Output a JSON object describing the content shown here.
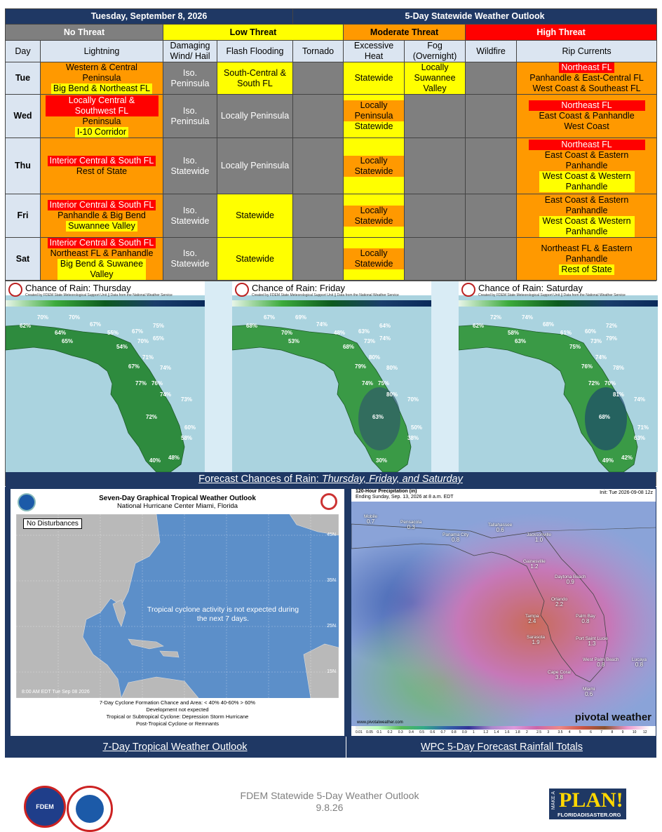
{
  "header": {
    "date": "Tuesday, September 8, 2026",
    "title": "5-Day Statewide Weather Outlook"
  },
  "legend": {
    "none": "No Threat",
    "low": "Low Threat",
    "moderate": "Moderate Threat",
    "high": "High Threat"
  },
  "colors": {
    "none": "#7f7f7f",
    "low": "#ffff00",
    "moderate": "#ff9900",
    "high": "#ff0000",
    "header_bg": "#1f3864"
  },
  "columns": [
    "Day",
    "Lightning",
    "Damaging Wind/ Hail",
    "Flash Flooding",
    "Tornado",
    "Excessive Heat",
    "Fog (Overnight)",
    "Wildfire",
    "Rip Currents"
  ],
  "days": [
    {
      "day": "Tue",
      "lightning": [
        "Western & Central",
        "Peninsula",
        "Big Bend & Northeast FL"
      ],
      "wind": "Iso. Peninsula",
      "flood": "South-Central & South FL",
      "heat": "Statewide",
      "fog": "Locally Suwannee Valley",
      "rip": [
        "Northeast FL",
        "Panhandle & East-Central FL",
        "West Coast & Southeast FL"
      ]
    },
    {
      "day": "Wed",
      "lightning": [
        "Locally Central & Southwest FL",
        "Peninsula",
        "I-10 Corridor"
      ],
      "wind": "Iso. Peninsula",
      "flood": "Locally Peninsula",
      "heat": [
        "Locally Peninsula",
        "Statewide"
      ],
      "rip": [
        "Northeast FL",
        "East Coast & Panhandle",
        "West Coast"
      ]
    },
    {
      "day": "Thu",
      "lightning": [
        "Interior Central & South FL",
        "Rest of State"
      ],
      "wind": "Iso. Statewide",
      "flood": "Locally Peninsula",
      "heat": "Locally Statewide",
      "rip": [
        "Northeast FL",
        "East Coast & Eastern Panhandle",
        "West Coast & Western Panhandle"
      ]
    },
    {
      "day": "Fri",
      "lightning": [
        "Interior Central & South FL",
        "Panhandle & Big Bend",
        "Suwannee Valley"
      ],
      "wind": "Iso. Statewide",
      "flood": "Statewide",
      "heat": "Locally Statewide",
      "rip": [
        "East Coast & Eastern Panhandle",
        "West Coast & Western Panhandle"
      ]
    },
    {
      "day": "Sat",
      "lightning": [
        "Interior Central & South FL",
        "Northeast FL & Panhandle",
        "Big Bend & Suwanee Valley"
      ],
      "wind": "Iso. Statewide",
      "flood": "Statewide",
      "heat": "Locally Statewide",
      "rip": [
        "Northeast FL & Eastern Panhandle",
        "Rest of State"
      ]
    }
  ],
  "rain_maps": {
    "titles": [
      "Chance of Rain: Thursday",
      "Chance of Rain: Friday",
      "Chance of Rain: Saturday"
    ],
    "credit": "Created by FDEM State Meteorological Support Unit || Data from the National Weather Service",
    "scale": [
      "20%",
      "30%",
      "40%",
      "50%",
      "60%",
      "70%",
      "80%",
      "90%"
    ],
    "values": [
      [
        "62%",
        "70%",
        "70%",
        "67%",
        "64%",
        "65%",
        "55%",
        "67%",
        "75%",
        "54%",
        "70%",
        "65%",
        "71%",
        "74%",
        "67%",
        "77%",
        "76%",
        "74%",
        "73%",
        "72%",
        "60%",
        "58%",
        "40%",
        "48%"
      ],
      [
        "68%",
        "67%",
        "69%",
        "74%",
        "70%",
        "53%",
        "48%",
        "63%",
        "64%",
        "68%",
        "73%",
        "74%",
        "80%",
        "80%",
        "79%",
        "74%",
        "75%",
        "80%",
        "70%",
        "63%",
        "50%",
        "38%",
        "30%"
      ],
      [
        "62%",
        "72%",
        "74%",
        "68%",
        "58%",
        "63%",
        "61%",
        "60%",
        "72%",
        "75%",
        "73%",
        "79%",
        "74%",
        "78%",
        "76%",
        "72%",
        "70%",
        "81%",
        "74%",
        "68%",
        "71%",
        "63%",
        "49%",
        "42%"
      ]
    ],
    "caption_lead": "Forecast Chances of Rain: ",
    "caption_days": "Thursday, Friday, and Saturday"
  },
  "tropical": {
    "title": "Seven-Day Graphical Tropical Weather Outlook",
    "subtitle": "National Hurricane Center  Miami, Florida",
    "no_dist": "No Disturbances",
    "message": "Tropical cyclone activity is not expected during the next 7 days.",
    "lats": [
      "45N",
      "35N",
      "25N",
      "15N"
    ],
    "lons": [
      "100W",
      "90W",
      "80W",
      "70W",
      "60W",
      "50W",
      "40W",
      "30W",
      "20W"
    ],
    "stamp": "8:00 AM EDT Tue Sep 08 2026",
    "legend_line1": "7-Day Cyclone Formation Chance and Area:  < 40%   40-60%   > 60%",
    "legend_line2": "Development not expected",
    "legend_line3": "Tropical or Subtropical Cyclone:  Depression   Storm   Hurricane",
    "legend_line4": "Post-Tropical Cyclone or Remnants",
    "caption": "7-Day Tropical Weather Outlook"
  },
  "wpc": {
    "title": "120-Hour Precipitation (in)",
    "ending": "Ending Sunday, Sep. 13, 2026 at 8 a.m. EDT",
    "init": "Init: Tue 2026-09-08 12z",
    "cities": [
      [
        "Mobile",
        "0.7"
      ],
      [
        "Pensacola",
        "0.3"
      ],
      [
        "Panama City",
        "0.8"
      ],
      [
        "Tallahassee",
        "0.6"
      ],
      [
        "Jacksonville",
        "1.0"
      ],
      [
        "Gainesville",
        "1.2"
      ],
      [
        "Daytona Beach",
        "0.9"
      ],
      [
        "Orlando",
        "2.2"
      ],
      [
        "Tampa",
        "2.4"
      ],
      [
        "Palm Bay",
        "0.8"
      ],
      [
        "Sarasota",
        "1.9"
      ],
      [
        "Port Saint Lucie",
        "1.3"
      ],
      [
        "West Palm Beach",
        "0.8"
      ],
      [
        "Cape Coral",
        "3.8"
      ],
      [
        "Miami",
        "0.6"
      ],
      [
        "Lucaya",
        "0.8"
      ]
    ],
    "brand": "pivotal weather",
    "site": "www.pivotalweather.com",
    "scale": [
      "0.01",
      "0.05",
      "0.1",
      "0.2",
      "0.3",
      "0.4",
      "0.5",
      "0.6",
      "0.7",
      "0.8",
      "0.9",
      "1",
      "1.2",
      "1.4",
      "1.6",
      "1.8",
      "2",
      "2.5",
      "3",
      "3.5",
      "4",
      "5",
      "6",
      "7",
      "8",
      "9",
      "10",
      "12"
    ],
    "caption": "WPC 5-Day Forecast Rainfall Totals"
  },
  "footer": {
    "line1": "FDEM Statewide 5-Day Weather Outlook",
    "line2": "9.8.26",
    "fdem_logo": "FDEM",
    "plan_make": "MAKE A",
    "plan_word": "PLAN!",
    "plan_url": "FLORIDADISASTER.ORG"
  }
}
